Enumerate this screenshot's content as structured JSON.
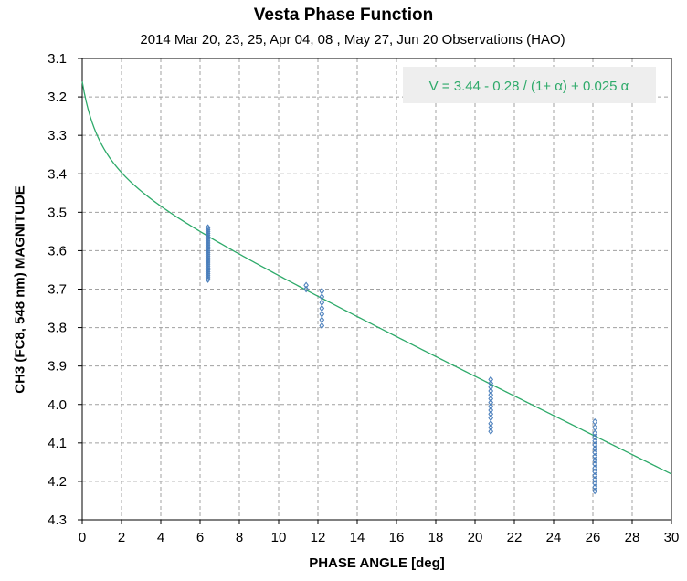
{
  "chart_data": {
    "type": "scatter",
    "title": "Vesta Phase Function",
    "subtitle": "2014 Mar 20, 23, 25, Apr 04, 08 , May 27, Jun 20 Observations (HAO)",
    "xlabel": "PHASE ANGLE [deg]",
    "ylabel": "CH3 (FC8, 548 nm)  MAGNITUDE",
    "xlim": [
      0,
      30
    ],
    "ylim": [
      4.3,
      3.1
    ],
    "y_inverted": true,
    "x_ticks": [
      "0",
      "2",
      "4",
      "6",
      "8",
      "10",
      "12",
      "14",
      "16",
      "18",
      "20",
      "22",
      "24",
      "26",
      "28",
      "30"
    ],
    "y_ticks": [
      "3.1",
      "3.2",
      "3.3",
      "3.4",
      "3.5",
      "3.6",
      "3.7",
      "3.8",
      "3.9",
      "4.0",
      "4.1",
      "4.2",
      "4.3"
    ],
    "grid": true,
    "fit_label": "V = 3.44 - 0.28 / (1+ α) + 0.025 α",
    "fit": {
      "a": 3.44,
      "b": 0.28,
      "c": 0.025
    },
    "colors": {
      "points": "#4a7ebb",
      "fit": "#2eaa6a",
      "grid": "#a0a0a0",
      "formula_box": "#eeeeee"
    },
    "series": [
      {
        "x": 6.4,
        "values": [
          3.54,
          3.545,
          3.55,
          3.555,
          3.56,
          3.565,
          3.57,
          3.575,
          3.58,
          3.585,
          3.59,
          3.595,
          3.6,
          3.605,
          3.61,
          3.615,
          3.62,
          3.625,
          3.63,
          3.635,
          3.64,
          3.645,
          3.65,
          3.655,
          3.66,
          3.665,
          3.67,
          3.675
        ]
      },
      {
        "x": 11.4,
        "values": [
          3.69,
          3.7
        ]
      },
      {
        "x": 12.2,
        "values": [
          3.705,
          3.72,
          3.735,
          3.75,
          3.765,
          3.78,
          3.795
        ]
      },
      {
        "x": 20.8,
        "values": [
          3.935,
          3.945,
          3.955,
          3.965,
          3.975,
          3.985,
          3.995,
          4.005,
          4.015,
          4.025,
          4.035,
          4.05,
          4.06,
          4.07
        ]
      },
      {
        "x": 26.1,
        "values": [
          4.045,
          4.06,
          4.075,
          4.085,
          4.095,
          4.105,
          4.115,
          4.125,
          4.135,
          4.145,
          4.155,
          4.165,
          4.175,
          4.185,
          4.195,
          4.205,
          4.215,
          4.225
        ]
      }
    ]
  }
}
